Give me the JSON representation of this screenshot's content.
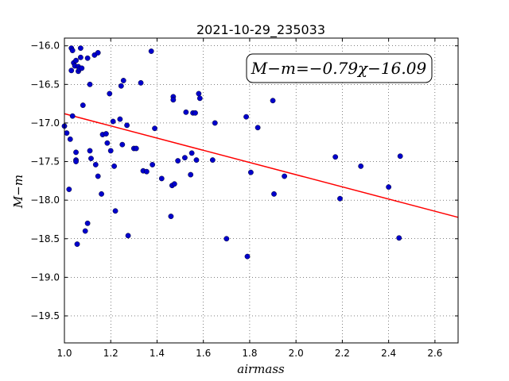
{
  "chart_data": {
    "type": "scatter",
    "title": "2021-10-29_235033",
    "xlabel": "airmass",
    "ylabel": "M−m",
    "xlim": [
      1.0,
      2.7
    ],
    "ylim": [
      -15.9,
      -19.85
    ],
    "y_inverted": true,
    "grid": true,
    "x_ticks": [
      "1.0",
      "1.2",
      "1.4",
      "1.6",
      "1.8",
      "2.0",
      "2.2",
      "2.4",
      "2.6"
    ],
    "y_ticks": [
      "−16.0",
      "−16.5",
      "−17.0",
      "−17.5",
      "−18.0",
      "−18.5",
      "−19.0",
      "−19.5"
    ],
    "annotation": "M−m=−0.79χ−16.09",
    "fit": {
      "slope": -0.79,
      "intercept": -16.09,
      "color": "#ff0000"
    },
    "point_color": "#0000cc",
    "points": [
      [
        1.0,
        -17.04
      ],
      [
        1.01,
        -17.13
      ],
      [
        1.02,
        -17.86
      ],
      [
        1.025,
        -17.21
      ],
      [
        1.03,
        -16.32
      ],
      [
        1.03,
        -16.03
      ],
      [
        1.035,
        -16.06
      ],
      [
        1.035,
        -16.91
      ],
      [
        1.04,
        -16.22
      ],
      [
        1.045,
        -16.26
      ],
      [
        1.05,
        -16.19
      ],
      [
        1.05,
        -17.38
      ],
      [
        1.05,
        -17.48
      ],
      [
        1.05,
        -17.5
      ],
      [
        1.055,
        -18.57
      ],
      [
        1.06,
        -16.33
      ],
      [
        1.06,
        -16.27
      ],
      [
        1.065,
        -16.3
      ],
      [
        1.07,
        -16.03
      ],
      [
        1.07,
        -16.15
      ],
      [
        1.075,
        -16.29
      ],
      [
        1.08,
        -16.77
      ],
      [
        1.09,
        -18.4
      ],
      [
        1.1,
        -18.3
      ],
      [
        1.1,
        -16.16
      ],
      [
        1.11,
        -16.5
      ],
      [
        1.11,
        -17.36
      ],
      [
        1.115,
        -17.46
      ],
      [
        1.13,
        -16.12
      ],
      [
        1.135,
        -17.54
      ],
      [
        1.145,
        -16.09
      ],
      [
        1.145,
        -17.69
      ],
      [
        1.16,
        -17.92
      ],
      [
        1.165,
        -17.15
      ],
      [
        1.18,
        -17.14
      ],
      [
        1.185,
        -17.26
      ],
      [
        1.195,
        -16.62
      ],
      [
        1.2,
        -17.36
      ],
      [
        1.21,
        -16.98
      ],
      [
        1.215,
        -17.56
      ],
      [
        1.22,
        -18.14
      ],
      [
        1.24,
        -16.95
      ],
      [
        1.245,
        -16.52
      ],
      [
        1.25,
        -17.28
      ],
      [
        1.255,
        -16.45
      ],
      [
        1.27,
        -17.03
      ],
      [
        1.275,
        -18.46
      ],
      [
        1.3,
        -17.33
      ],
      [
        1.31,
        -17.33
      ],
      [
        1.33,
        -16.48
      ],
      [
        1.34,
        -17.62
      ],
      [
        1.355,
        -17.63
      ],
      [
        1.375,
        -16.07
      ],
      [
        1.38,
        -17.54
      ],
      [
        1.39,
        -17.07
      ],
      [
        1.42,
        -17.72
      ],
      [
        1.46,
        -18.21
      ],
      [
        1.465,
        -17.81
      ],
      [
        1.47,
        -16.66
      ],
      [
        1.47,
        -16.7
      ],
      [
        1.475,
        -17.79
      ],
      [
        1.49,
        -17.49
      ],
      [
        1.52,
        -17.45
      ],
      [
        1.525,
        -16.86
      ],
      [
        1.545,
        -17.67
      ],
      [
        1.55,
        -17.39
      ],
      [
        1.555,
        -16.87
      ],
      [
        1.565,
        -16.87
      ],
      [
        1.57,
        -17.48
      ],
      [
        1.58,
        -16.62
      ],
      [
        1.585,
        -16.68
      ],
      [
        1.64,
        -17.48
      ],
      [
        1.65,
        -17.0
      ],
      [
        1.7,
        -18.5
      ],
      [
        1.785,
        -16.92
      ],
      [
        1.79,
        -18.73
      ],
      [
        1.805,
        -17.64
      ],
      [
        1.835,
        -17.06
      ],
      [
        1.9,
        -16.71
      ],
      [
        1.905,
        -17.92
      ],
      [
        1.95,
        -17.69
      ],
      [
        2.17,
        -17.44
      ],
      [
        2.19,
        -17.98
      ],
      [
        2.28,
        -17.56
      ],
      [
        2.4,
        -17.83
      ],
      [
        2.445,
        -18.49
      ],
      [
        2.45,
        -17.43
      ]
    ]
  }
}
